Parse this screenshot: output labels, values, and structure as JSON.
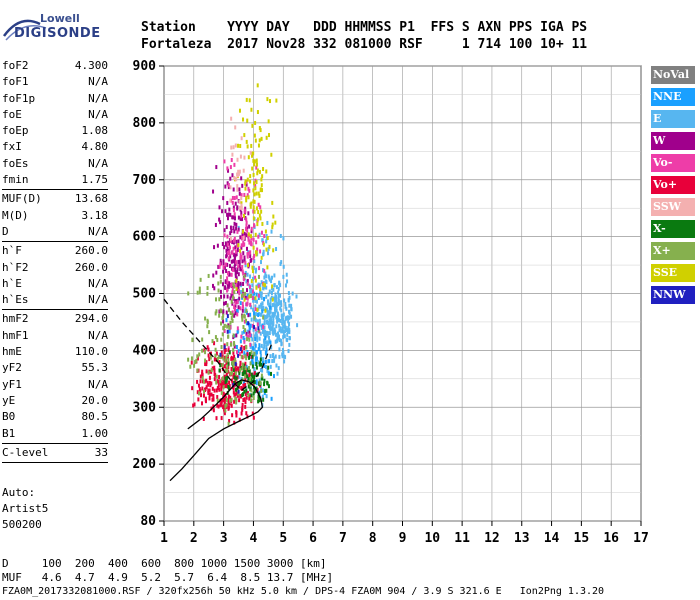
{
  "logo": {
    "top": "Lowell",
    "bottom": "DIGISONDE"
  },
  "header": {
    "line1": "Station    YYYY DAY   DDD HHMMSS P1  FFS S AXN PPS IGA PS",
    "line2": "Fortaleza  2017 Nov28 332 081000 RSF     1 714 100 10+ 11"
  },
  "params": [
    {
      "name": "foF2",
      "value": "4.300"
    },
    {
      "name": "foF1",
      "value": "N/A"
    },
    {
      "name": "foF1p",
      "value": "N/A"
    },
    {
      "name": "foE",
      "value": "N/A"
    },
    {
      "name": "foEp",
      "value": "1.08"
    },
    {
      "name": "fxI",
      "value": "4.80"
    },
    {
      "name": "foEs",
      "value": "N/A"
    },
    {
      "name": "fmin",
      "value": "1.75"
    },
    {
      "name": "MUF(D)",
      "value": "13.68"
    },
    {
      "name": "M(D)",
      "value": "3.18"
    },
    {
      "name": "D",
      "value": "N/A"
    },
    {
      "name": "h`F",
      "value": "260.0"
    },
    {
      "name": "h`F2",
      "value": "260.0"
    },
    {
      "name": "h`E",
      "value": "N/A"
    },
    {
      "name": "h`Es",
      "value": "N/A"
    },
    {
      "name": "hmF2",
      "value": "294.0"
    },
    {
      "name": "hmF1",
      "value": "N/A"
    },
    {
      "name": "hmE",
      "value": "110.0"
    },
    {
      "name": "yF2",
      "value": "55.3"
    },
    {
      "name": "yF1",
      "value": "N/A"
    },
    {
      "name": "yE",
      "value": "20.0"
    },
    {
      "name": "B0",
      "value": "80.5"
    },
    {
      "name": "B1",
      "value": "1.00"
    },
    {
      "name": "C-level",
      "value": "33"
    }
  ],
  "auto": {
    "l1": "Auto:",
    "l2": "Artist5",
    "l3": "500200"
  },
  "legend": [
    {
      "label": "NoVal",
      "color": "#808080"
    },
    {
      "label": "NNE",
      "color": "#1aa0ff"
    },
    {
      "label": "E",
      "color": "#57b6f0"
    },
    {
      "label": "W",
      "color": "#a0008c"
    },
    {
      "label": "Vo-",
      "color": "#ee3da8"
    },
    {
      "label": "Vo+",
      "color": "#e8003a"
    },
    {
      "label": "SSW",
      "color": "#f4b0b0"
    },
    {
      "label": "X-",
      "color": "#0a7a10"
    },
    {
      "label": "X+",
      "color": "#86b04e"
    },
    {
      "label": "SSE",
      "color": "#d0d000"
    },
    {
      "label": "NNW",
      "color": "#2020c0"
    }
  ],
  "bottom": {
    "d_line": "D     100  200  400  600  800 1000 1500 3000 [km]",
    "muf_line": "MUF   4.6  4.7  4.9  5.2  5.7  6.4  8.5 13.7 [MHz]",
    "footer": "FZA0M_2017332081000.RSF / 320fx256h 50 kHz 5.0 km / DPS-4 FZA0M 904 / 3.9 S 321.6 E   Ion2Png 1.3.20"
  },
  "chart_data": {
    "type": "scatter",
    "title": "",
    "xlabel": "",
    "ylabel": "",
    "xlim": [
      1,
      17
    ],
    "ylim": [
      80,
      900
    ],
    "x_ticks": [
      1,
      2,
      3,
      4,
      5,
      6,
      7,
      8,
      9,
      10,
      11,
      12,
      13,
      14,
      15,
      16,
      17
    ],
    "y_ticks": [
      80,
      200,
      300,
      400,
      500,
      600,
      700,
      800,
      900
    ],
    "grid": true,
    "series": [
      {
        "name": "trace-solid",
        "style": "solid",
        "points": [
          [
            1.2,
            165
          ],
          [
            1.6,
            190
          ],
          [
            2.0,
            215
          ],
          [
            2.5,
            245
          ],
          [
            3.0,
            262
          ],
          [
            3.5,
            275
          ],
          [
            3.9,
            285
          ],
          [
            4.15,
            292
          ],
          [
            4.3,
            300
          ],
          [
            4.25,
            315
          ],
          [
            4.05,
            335
          ],
          [
            3.85,
            345
          ],
          [
            3.6,
            348
          ],
          [
            3.4,
            342
          ],
          [
            3.2,
            330
          ],
          [
            3.0,
            318
          ],
          [
            2.75,
            305
          ],
          [
            2.5,
            292
          ],
          [
            2.25,
            280
          ],
          [
            2.0,
            270
          ],
          [
            1.8,
            262
          ]
        ]
      },
      {
        "name": "trace-dashed",
        "style": "dashed",
        "points": [
          [
            1.0,
            490
          ],
          [
            1.6,
            450
          ],
          [
            2.2,
            415
          ],
          [
            2.8,
            380
          ],
          [
            3.2,
            350
          ],
          [
            3.6,
            330
          ],
          [
            4.0,
            345
          ],
          [
            4.3,
            370
          ],
          [
            4.6,
            410
          ]
        ]
      }
    ],
    "echo_clusters": [
      {
        "name": "E",
        "color": "#57b6f0",
        "x": [
          3.9,
          5.5
        ],
        "y": [
          360,
          540
        ],
        "n": 260
      },
      {
        "name": "E",
        "color": "#57b6f0",
        "x": [
          3.3,
          5.2
        ],
        "y": [
          300,
          650
        ],
        "n": 160
      },
      {
        "name": "NNE",
        "color": "#1aa0ff",
        "x": [
          3.0,
          4.8
        ],
        "y": [
          300,
          520
        ],
        "n": 90
      },
      {
        "name": "W",
        "color": "#a0008c",
        "x": [
          2.6,
          4.0
        ],
        "y": [
          380,
          730
        ],
        "n": 220
      },
      {
        "name": "Vo-",
        "color": "#ee3da8",
        "x": [
          2.8,
          4.5
        ],
        "y": [
          360,
          760
        ],
        "n": 160
      },
      {
        "name": "Vo+",
        "color": "#e8003a",
        "x": [
          1.9,
          4.3
        ],
        "y": [
          265,
          420
        ],
        "n": 280
      },
      {
        "name": "X-",
        "color": "#0a7a10",
        "x": [
          2.8,
          4.8
        ],
        "y": [
          300,
          400
        ],
        "n": 90
      },
      {
        "name": "X+",
        "color": "#86b04e",
        "x": [
          1.7,
          4.6
        ],
        "y": [
          265,
          560
        ],
        "n": 170
      },
      {
        "name": "SSE",
        "color": "#d0d000",
        "x": [
          3.3,
          4.8
        ],
        "y": [
          440,
          900
        ],
        "n": 130
      },
      {
        "name": "SSW",
        "color": "#f4b0b0",
        "x": [
          3.0,
          4.0
        ],
        "y": [
          560,
          870
        ],
        "n": 30
      },
      {
        "name": "NNW",
        "color": "#2020c0",
        "x": [
          2.0,
          4.3
        ],
        "y": [
          300,
          520
        ],
        "n": 12
      }
    ]
  }
}
